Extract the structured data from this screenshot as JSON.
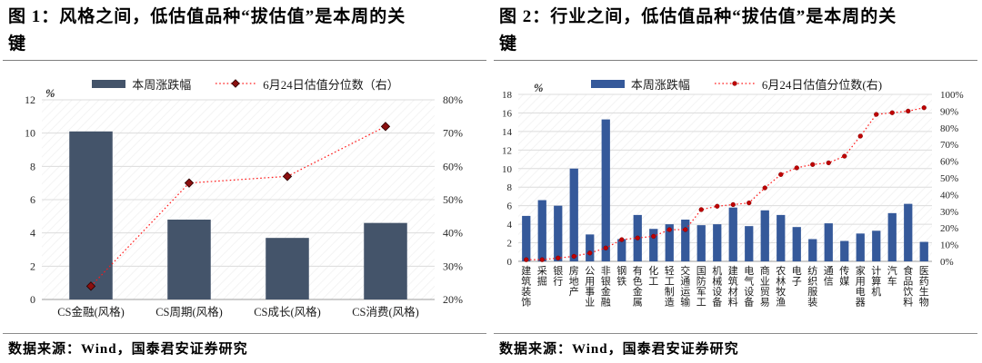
{
  "panels": [
    {
      "title_lines": [
        "图 1：风格之间，低估值品种“拔估值”是本周的关",
        "键"
      ],
      "source": "数据来源：Wind，国泰君安证券研究"
    },
    {
      "title_lines": [
        "图 2：行业之间，低估值品种“拔估值”是本周的关",
        "键"
      ],
      "source": "数据来源：Wind，国泰君安证券研究"
    }
  ],
  "chart_data": [
    {
      "type": "bar+line",
      "title": "图 1：风格之间，低估值品种“拔估值”是本周的关键",
      "categories": [
        "CS金融(风格)",
        "CS周期(风格)",
        "CS成长(风格)",
        "CS消费(风格)"
      ],
      "series": [
        {
          "name": "本周涨跌幅",
          "type": "bar",
          "axis": "left",
          "values": [
            10.1,
            4.8,
            3.7,
            4.6
          ]
        },
        {
          "name": "6月24日估值分位数（右）",
          "type": "line",
          "axis": "right",
          "values": [
            24,
            55,
            57,
            72
          ]
        }
      ],
      "left_axis": {
        "min": 0,
        "max": 12,
        "step": 2,
        "unit": "%"
      },
      "right_axis": {
        "min": 20,
        "max": 80,
        "step": 10,
        "suffix": "%"
      },
      "bar_color": "#44546A",
      "line_color": "#ff1a1a",
      "marker_color": "#8b0f0f",
      "grid": true,
      "legend_position": "top"
    },
    {
      "type": "bar+line",
      "title": "图 2：行业之间，低估值品种“拔估值”是本周的关键",
      "categories": [
        "建筑装饰",
        "采掘",
        "银行",
        "房地产",
        "公用事业",
        "非银金融",
        "钢铁",
        "有色金属",
        "化工",
        "轻工制造",
        "交通运输",
        "国防军工",
        "机械设备",
        "建筑材料",
        "电气设备",
        "商业贸易",
        "农林牧渔",
        "电子",
        "纺织服装",
        "通信",
        "传媒",
        "家用电器",
        "计算机",
        "汽车",
        "食品饮料",
        "医药生物"
      ],
      "series": [
        {
          "name": "本周涨跌幅",
          "type": "bar",
          "axis": "left",
          "values": [
            4.9,
            6.6,
            6.0,
            10.0,
            2.9,
            15.3,
            2.4,
            5.0,
            3.5,
            4.0,
            4.5,
            3.9,
            4.0,
            5.8,
            3.8,
            5.5,
            5.0,
            3.7,
            2.4,
            4.1,
            2.2,
            3.0,
            3.3,
            5.2,
            6.2,
            2.1
          ]
        },
        {
          "name": "6月24日估值分位数(右)",
          "type": "line",
          "axis": "right",
          "values": [
            1,
            1,
            2,
            3,
            5,
            8,
            13,
            14,
            15,
            19,
            19,
            31,
            33,
            34,
            35,
            44,
            52,
            56,
            58,
            59,
            63,
            75,
            88,
            89,
            90,
            92
          ]
        }
      ],
      "left_axis": {
        "min": 0,
        "max": 18,
        "step": 2,
        "unit": "%"
      },
      "right_axis": {
        "min": 0,
        "max": 100,
        "step": 10,
        "suffix": "%"
      },
      "bar_color": "#35599A",
      "line_color": "#ff1a1a",
      "marker_color": "#c00000",
      "grid": true,
      "legend_position": "top"
    }
  ]
}
